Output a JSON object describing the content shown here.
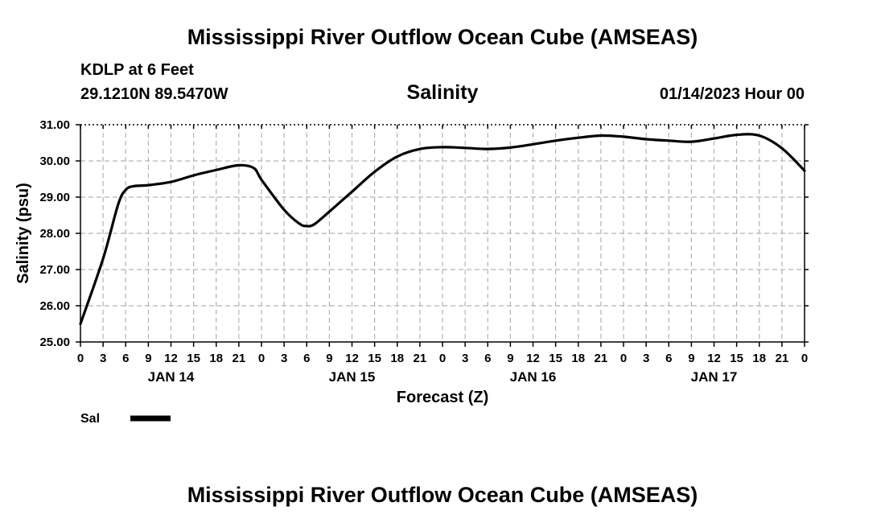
{
  "header": {
    "title": "Mississippi River Outflow Ocean Cube (AMSEAS)",
    "station": "KDLP at 6 Feet",
    "coordinates": "29.1210N  89.5470W",
    "datetime": "01/14/2023 Hour 00"
  },
  "footer": {
    "title": "Mississippi River Outflow Ocean Cube (AMSEAS)"
  },
  "chart_data": {
    "type": "line",
    "title": "Salinity",
    "xlabel": "Forecast (Z)",
    "ylabel": "Salinity (psu)",
    "ylim": [
      25.0,
      31.0
    ],
    "xlim": [
      0,
      96
    ],
    "grid": true,
    "y_ticks": [
      "25.00",
      "26.00",
      "27.00",
      "28.00",
      "29.00",
      "30.00",
      "31.00"
    ],
    "x_tick_labels": [
      "0",
      "3",
      "6",
      "9",
      "12",
      "15",
      "18",
      "21",
      "0",
      "3",
      "6",
      "9",
      "12",
      "15",
      "18",
      "21",
      "0",
      "3",
      "6",
      "9",
      "12",
      "15",
      "18",
      "21",
      "0",
      "3",
      "6",
      "9",
      "12",
      "15",
      "18",
      "21",
      "0"
    ],
    "day_labels": [
      {
        "label": "JAN 14",
        "hour": 12
      },
      {
        "label": "JAN 15",
        "hour": 36
      },
      {
        "label": "JAN 16",
        "hour": 60
      },
      {
        "label": "JAN 17",
        "hour": 84
      }
    ],
    "series": [
      {
        "name": "Sal",
        "color": "#000000",
        "x": [
          0,
          3,
          5,
          6,
          7,
          9,
          12,
          15,
          18,
          21,
          23,
          24,
          27,
          29,
          30,
          31,
          33,
          36,
          39,
          42,
          45,
          48,
          51,
          54,
          57,
          60,
          63,
          66,
          69,
          72,
          75,
          78,
          81,
          84,
          87,
          90,
          93,
          96
        ],
        "values": [
          25.5,
          27.3,
          28.8,
          29.2,
          29.3,
          29.33,
          29.42,
          29.6,
          29.75,
          29.88,
          29.8,
          29.48,
          28.65,
          28.27,
          28.2,
          28.25,
          28.6,
          29.15,
          29.7,
          30.12,
          30.33,
          30.38,
          30.36,
          30.33,
          30.37,
          30.46,
          30.56,
          30.64,
          30.7,
          30.67,
          30.6,
          30.56,
          30.53,
          30.62,
          30.72,
          30.7,
          30.35,
          29.73
        ]
      }
    ],
    "legend_position": "bottom-left"
  }
}
